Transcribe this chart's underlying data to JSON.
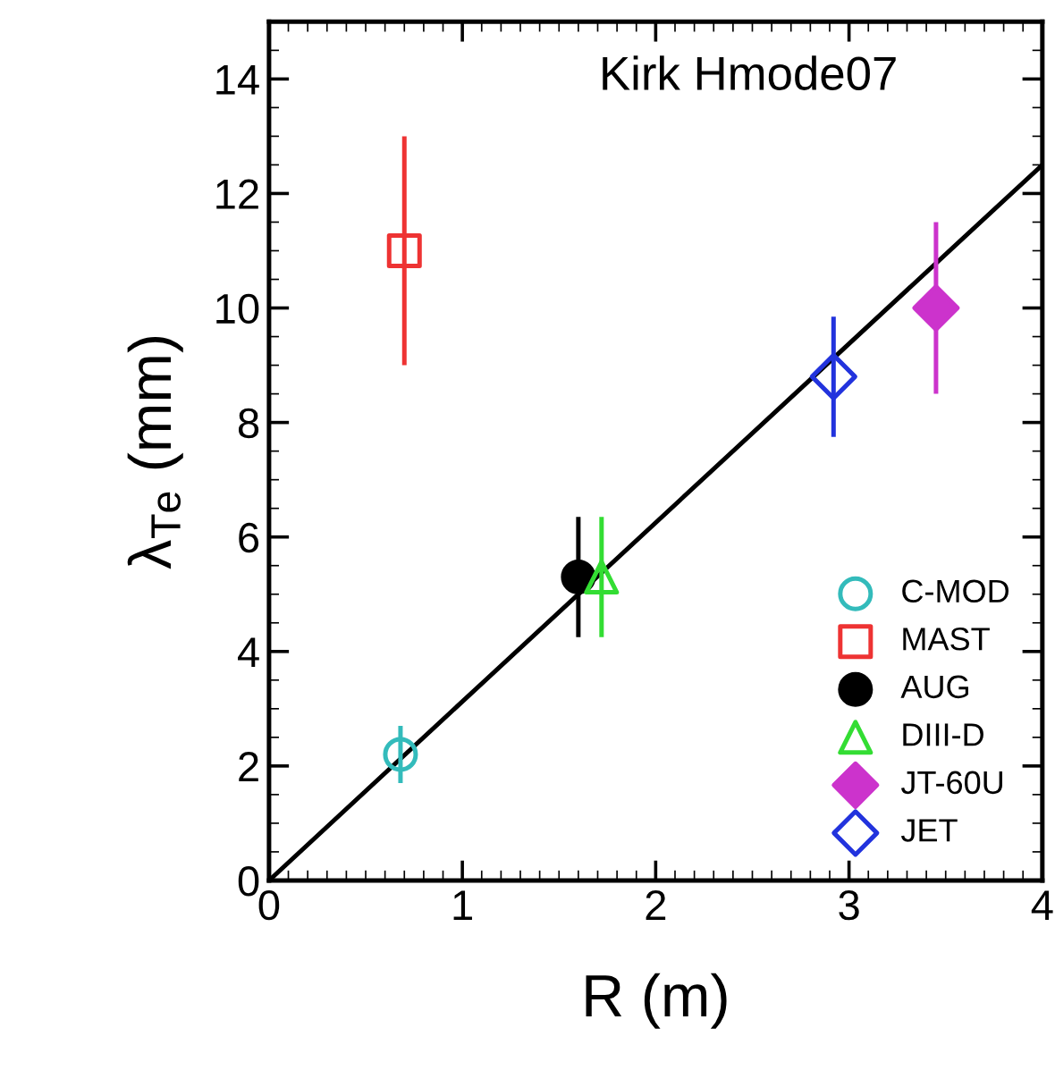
{
  "chart_data": {
    "type": "scatter",
    "xlabel": "R (m)",
    "ylabel": "λ$_{Te}$ (mm)",
    "annotations": [
      "Kirk Hmode07"
    ],
    "xlim": [
      0,
      4
    ],
    "ylim": [
      0,
      15
    ],
    "xticks": [
      0,
      1,
      2,
      3,
      4
    ],
    "yticks": [
      0,
      2,
      4,
      6,
      8,
      10,
      12,
      14
    ],
    "grid": false,
    "legend": "bottom right",
    "series": [
      {
        "name": "C-MOD",
        "color": "#33bbbb",
        "marker": "circle",
        "x": [
          0.68
        ],
        "values": [
          2.2
        ],
        "errors": [
          0.5
        ]
      },
      {
        "name": "MAST",
        "color": "#ee3333",
        "marker": "square",
        "x": [
          0.7
        ],
        "values": [
          11
        ],
        "errors": [
          2
        ]
      },
      {
        "name": "AUG",
        "color": "#000000",
        "marker": "circle",
        "colors": [
          "#000000"
        ],
        "x": [
          1.6
        ],
        "values": [
          5.3
        ],
        "errors": [
          1.05
        ]
      },
      {
        "name": "DIII-D",
        "color": "#33dd33",
        "marker": "triangle",
        "x": [
          1.72
        ],
        "values": [
          5.3
        ],
        "errors": [
          1.05
        ]
      },
      {
        "name": "JT-60U",
        "color": "#cc33cc",
        "marker": "diamond",
        "colors": [
          "#cc33cc"
        ],
        "x": [
          3.45
        ],
        "values": [
          10
        ],
        "errors": [
          1.5
        ]
      },
      {
        "name": "JET",
        "color": "#2233dd",
        "marker": "diamond",
        "x": [
          2.92
        ],
        "values": [
          8.8
        ],
        "errors": [
          1.05
        ]
      },
      {
        "type": "line",
        "color": "#000000",
        "marker": "none",
        "x": [
          0,
          4
        ],
        "values": [
          0,
          12.5
        ]
      }
    ]
  }
}
